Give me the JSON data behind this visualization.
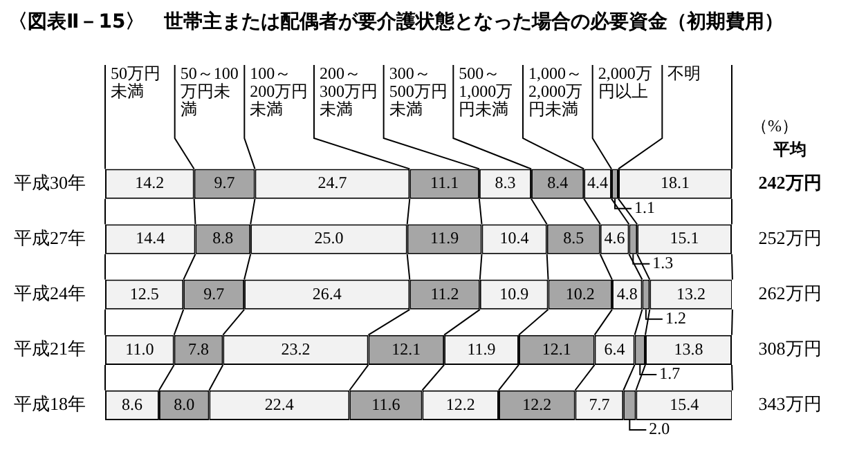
{
  "chart_data": {
    "type": "bar",
    "orientation": "horizontal",
    "stacked": true,
    "title": "〈図表Ⅱ－15〉　世帯主または配偶者が要介護状態となった場合の必要資金（初期費用）",
    "categories": [
      "平成30年",
      "平成27年",
      "平成24年",
      "平成21年",
      "平成18年"
    ],
    "xlim": [
      0,
      100
    ],
    "tick_labels": "y",
    "legend": "top",
    "series": [
      {
        "name": "50万円未満",
        "color": "#f2f2f2",
        "values": [
          14.2,
          14.4,
          12.5,
          11.0,
          8.6
        ],
        "value_labels": [
          "14.2",
          "14.4",
          "12.5",
          "11.0",
          "8.6"
        ]
      },
      {
        "name": "50～100万円未満",
        "color": "#a6a6a6",
        "values": [
          9.7,
          8.8,
          9.7,
          7.8,
          8.0
        ],
        "value_labels": [
          "9.7",
          "8.8",
          "9.7",
          "7.8",
          "8.0"
        ]
      },
      {
        "name": "100～200万円未満",
        "color": "#f2f2f2",
        "values": [
          24.7,
          25.0,
          26.4,
          23.2,
          22.4
        ],
        "value_labels": [
          "24.7",
          "25.0",
          "26.4",
          "23.2",
          "22.4"
        ]
      },
      {
        "name": "200～300万円未満",
        "color": "#a6a6a6",
        "values": [
          11.1,
          11.9,
          11.2,
          12.1,
          11.6
        ],
        "value_labels": [
          "11.1",
          "11.9",
          "11.2",
          "12.1",
          "11.6"
        ]
      },
      {
        "name": "300～500万円未満",
        "color": "#f2f2f2",
        "values": [
          8.3,
          10.4,
          10.9,
          11.9,
          12.2
        ],
        "value_labels": [
          "8.3",
          "10.4",
          "10.9",
          "11.9",
          "12.2"
        ]
      },
      {
        "name": "500～1,000万円未満",
        "color": "#a6a6a6",
        "values": [
          8.4,
          8.5,
          10.2,
          12.1,
          12.2
        ],
        "value_labels": [
          "8.4",
          "8.5",
          "10.2",
          "12.1",
          "12.2"
        ]
      },
      {
        "name": "1,000～2,000万円未満",
        "color": "#f2f2f2",
        "values": [
          4.4,
          4.6,
          4.8,
          6.4,
          7.7
        ],
        "value_labels": [
          "4.4",
          "4.6",
          "4.8",
          "6.4",
          "7.7"
        ]
      },
      {
        "name": "2,000万円以上",
        "color": "#a6a6a6",
        "values": [
          1.1,
          1.3,
          1.2,
          1.7,
          2.0
        ],
        "value_labels": [
          "1.1",
          "1.3",
          "1.2",
          "1.7",
          "2.0"
        ]
      },
      {
        "name": "不明",
        "color": "#f2f2f2",
        "values": [
          18.1,
          15.1,
          13.2,
          13.8,
          15.4
        ],
        "value_labels": [
          "18.1",
          "15.1",
          "13.2",
          "13.8",
          "15.4"
        ]
      }
    ],
    "annotations": [
      "（%）",
      "平均",
      "242万円",
      "252万円",
      "262万円",
      "308万円",
      "343万円"
    ]
  }
}
